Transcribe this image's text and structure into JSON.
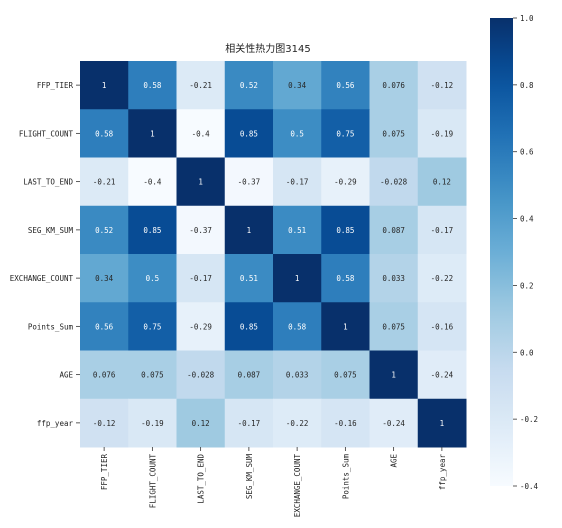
{
  "chart_data": {
    "type": "heatmap",
    "title": "相关性热力图3145",
    "xlabel": "",
    "ylabel": "",
    "categories": [
      "FFP_TIER",
      "FLIGHT_COUNT",
      "LAST_TO_END",
      "SEG_KM_SUM",
      "EXCHANGE_COUNT",
      "Points_Sum",
      "AGE",
      "ffp_year"
    ],
    "values": [
      [
        1,
        0.58,
        -0.21,
        0.52,
        0.34,
        0.56,
        0.076,
        -0.12
      ],
      [
        0.58,
        1,
        -0.4,
        0.85,
        0.5,
        0.75,
        0.075,
        -0.19
      ],
      [
        -0.21,
        -0.4,
        1,
        -0.37,
        -0.17,
        -0.29,
        -0.028,
        0.12
      ],
      [
        0.52,
        0.85,
        -0.37,
        1,
        0.51,
        0.85,
        0.087,
        -0.17
      ],
      [
        0.34,
        0.5,
        -0.17,
        0.51,
        1,
        0.58,
        0.033,
        -0.22
      ],
      [
        0.56,
        0.75,
        -0.29,
        0.85,
        0.58,
        1,
        0.075,
        -0.16
      ],
      [
        0.076,
        0.075,
        -0.028,
        0.087,
        0.033,
        0.075,
        1,
        -0.24
      ],
      [
        -0.12,
        -0.19,
        0.12,
        -0.17,
        -0.22,
        -0.16,
        -0.24,
        1
      ]
    ],
    "value_labels": [
      [
        "1",
        "0.58",
        "-0.21",
        "0.52",
        "0.34",
        "0.56",
        "0.076",
        "-0.12"
      ],
      [
        "0.58",
        "1",
        "-0.4",
        "0.85",
        "0.5",
        "0.75",
        "0.075",
        "-0.19"
      ],
      [
        "-0.21",
        "-0.4",
        "1",
        "-0.37",
        "-0.17",
        "-0.29",
        "-0.028",
        "0.12"
      ],
      [
        "0.52",
        "0.85",
        "-0.37",
        "1",
        "0.51",
        "0.85",
        "0.087",
        "-0.17"
      ],
      [
        "0.34",
        "0.5",
        "-0.17",
        "0.51",
        "1",
        "0.58",
        "0.033",
        "-0.22"
      ],
      [
        "0.56",
        "0.75",
        "-0.29",
        "0.85",
        "0.58",
        "1",
        "0.075",
        "-0.16"
      ],
      [
        "0.076",
        "0.075",
        "-0.028",
        "0.087",
        "0.033",
        "0.075",
        "1",
        "-0.24"
      ],
      [
        "-0.12",
        "-0.19",
        "0.12",
        "-0.17",
        "-0.22",
        "-0.16",
        "-0.24",
        "1"
      ]
    ],
    "colormap": "Blues",
    "color_range": [
      -0.4,
      1.0
    ],
    "colorbar_ticks": [
      -0.4,
      -0.2,
      0.0,
      0.2,
      0.4,
      0.6,
      0.8,
      1.0
    ],
    "colorbar_tick_labels": [
      "-0.4",
      "-0.2",
      "0.0",
      "0.2",
      "0.4",
      "0.6",
      "0.8",
      "1.0"
    ],
    "colorbar_placement": "right",
    "grid": false
  }
}
